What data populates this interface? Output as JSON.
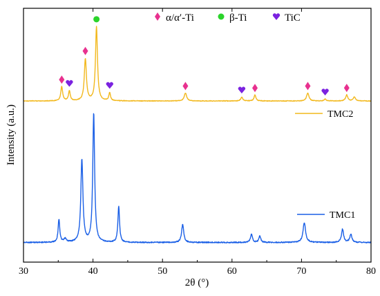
{
  "chart_data": {
    "type": "line",
    "title": "",
    "xlabel": "2θ (°)",
    "ylabel": "Intensity (a.u.)",
    "xlim": [
      30,
      80
    ],
    "xticks": [
      30,
      40,
      50,
      60,
      70,
      80
    ],
    "grid": false,
    "legend_placement": "top",
    "series": [
      {
        "name": "TMC1",
        "color": "#1a5fe6",
        "baseline": 0.01,
        "peaks": [
          {
            "x": 35.1,
            "h": 0.14,
            "w": 0.14
          },
          {
            "x": 36.0,
            "h": 0.02,
            "w": 0.2
          },
          {
            "x": 38.4,
            "h": 0.5,
            "w": 0.18
          },
          {
            "x": 40.1,
            "h": 0.78,
            "w": 0.16
          },
          {
            "x": 43.7,
            "h": 0.22,
            "w": 0.14
          },
          {
            "x": 52.9,
            "h": 0.11,
            "w": 0.18
          },
          {
            "x": 62.8,
            "h": 0.05,
            "w": 0.16
          },
          {
            "x": 64.0,
            "h": 0.04,
            "w": 0.16
          },
          {
            "x": 70.4,
            "h": 0.12,
            "w": 0.22
          },
          {
            "x": 75.9,
            "h": 0.08,
            "w": 0.18
          },
          {
            "x": 77.1,
            "h": 0.05,
            "w": 0.18
          }
        ]
      },
      {
        "name": "TMC2",
        "color": "#f2b81c",
        "baseline": 0.0,
        "peaks": [
          {
            "x": 35.5,
            "h": 0.07,
            "w": 0.16
          },
          {
            "x": 36.6,
            "h": 0.05,
            "w": 0.15
          },
          {
            "x": 38.9,
            "h": 0.21,
            "w": 0.18
          },
          {
            "x": 40.5,
            "h": 0.37,
            "w": 0.17
          },
          {
            "x": 42.4,
            "h": 0.04,
            "w": 0.15
          },
          {
            "x": 53.3,
            "h": 0.04,
            "w": 0.2
          },
          {
            "x": 61.4,
            "h": 0.02,
            "w": 0.16
          },
          {
            "x": 63.3,
            "h": 0.03,
            "w": 0.16
          },
          {
            "x": 70.9,
            "h": 0.04,
            "w": 0.2
          },
          {
            "x": 73.4,
            "h": 0.01,
            "w": 0.16
          },
          {
            "x": 76.5,
            "h": 0.03,
            "w": 0.18
          },
          {
            "x": 77.6,
            "h": 0.02,
            "w": 0.18
          }
        ]
      }
    ],
    "legend": [
      {
        "label": "α/α′-Ti",
        "marker": "diamond",
        "color": "#e8318f"
      },
      {
        "label": "β-Ti",
        "marker": "circle",
        "color": "#2bd42b"
      },
      {
        "label": "TiC",
        "marker": "heart",
        "color": "#7b22e0"
      }
    ],
    "annotations": [
      {
        "series": "TMC2",
        "marker": "diamond",
        "x": [
          35.5,
          38.9,
          53.3,
          63.3,
          70.9,
          76.5
        ]
      },
      {
        "series": "TMC2",
        "marker": "circle",
        "x": [
          40.5
        ]
      },
      {
        "series": "TMC2",
        "marker": "heart",
        "x": [
          36.6,
          42.4,
          61.4,
          73.4
        ]
      }
    ]
  }
}
